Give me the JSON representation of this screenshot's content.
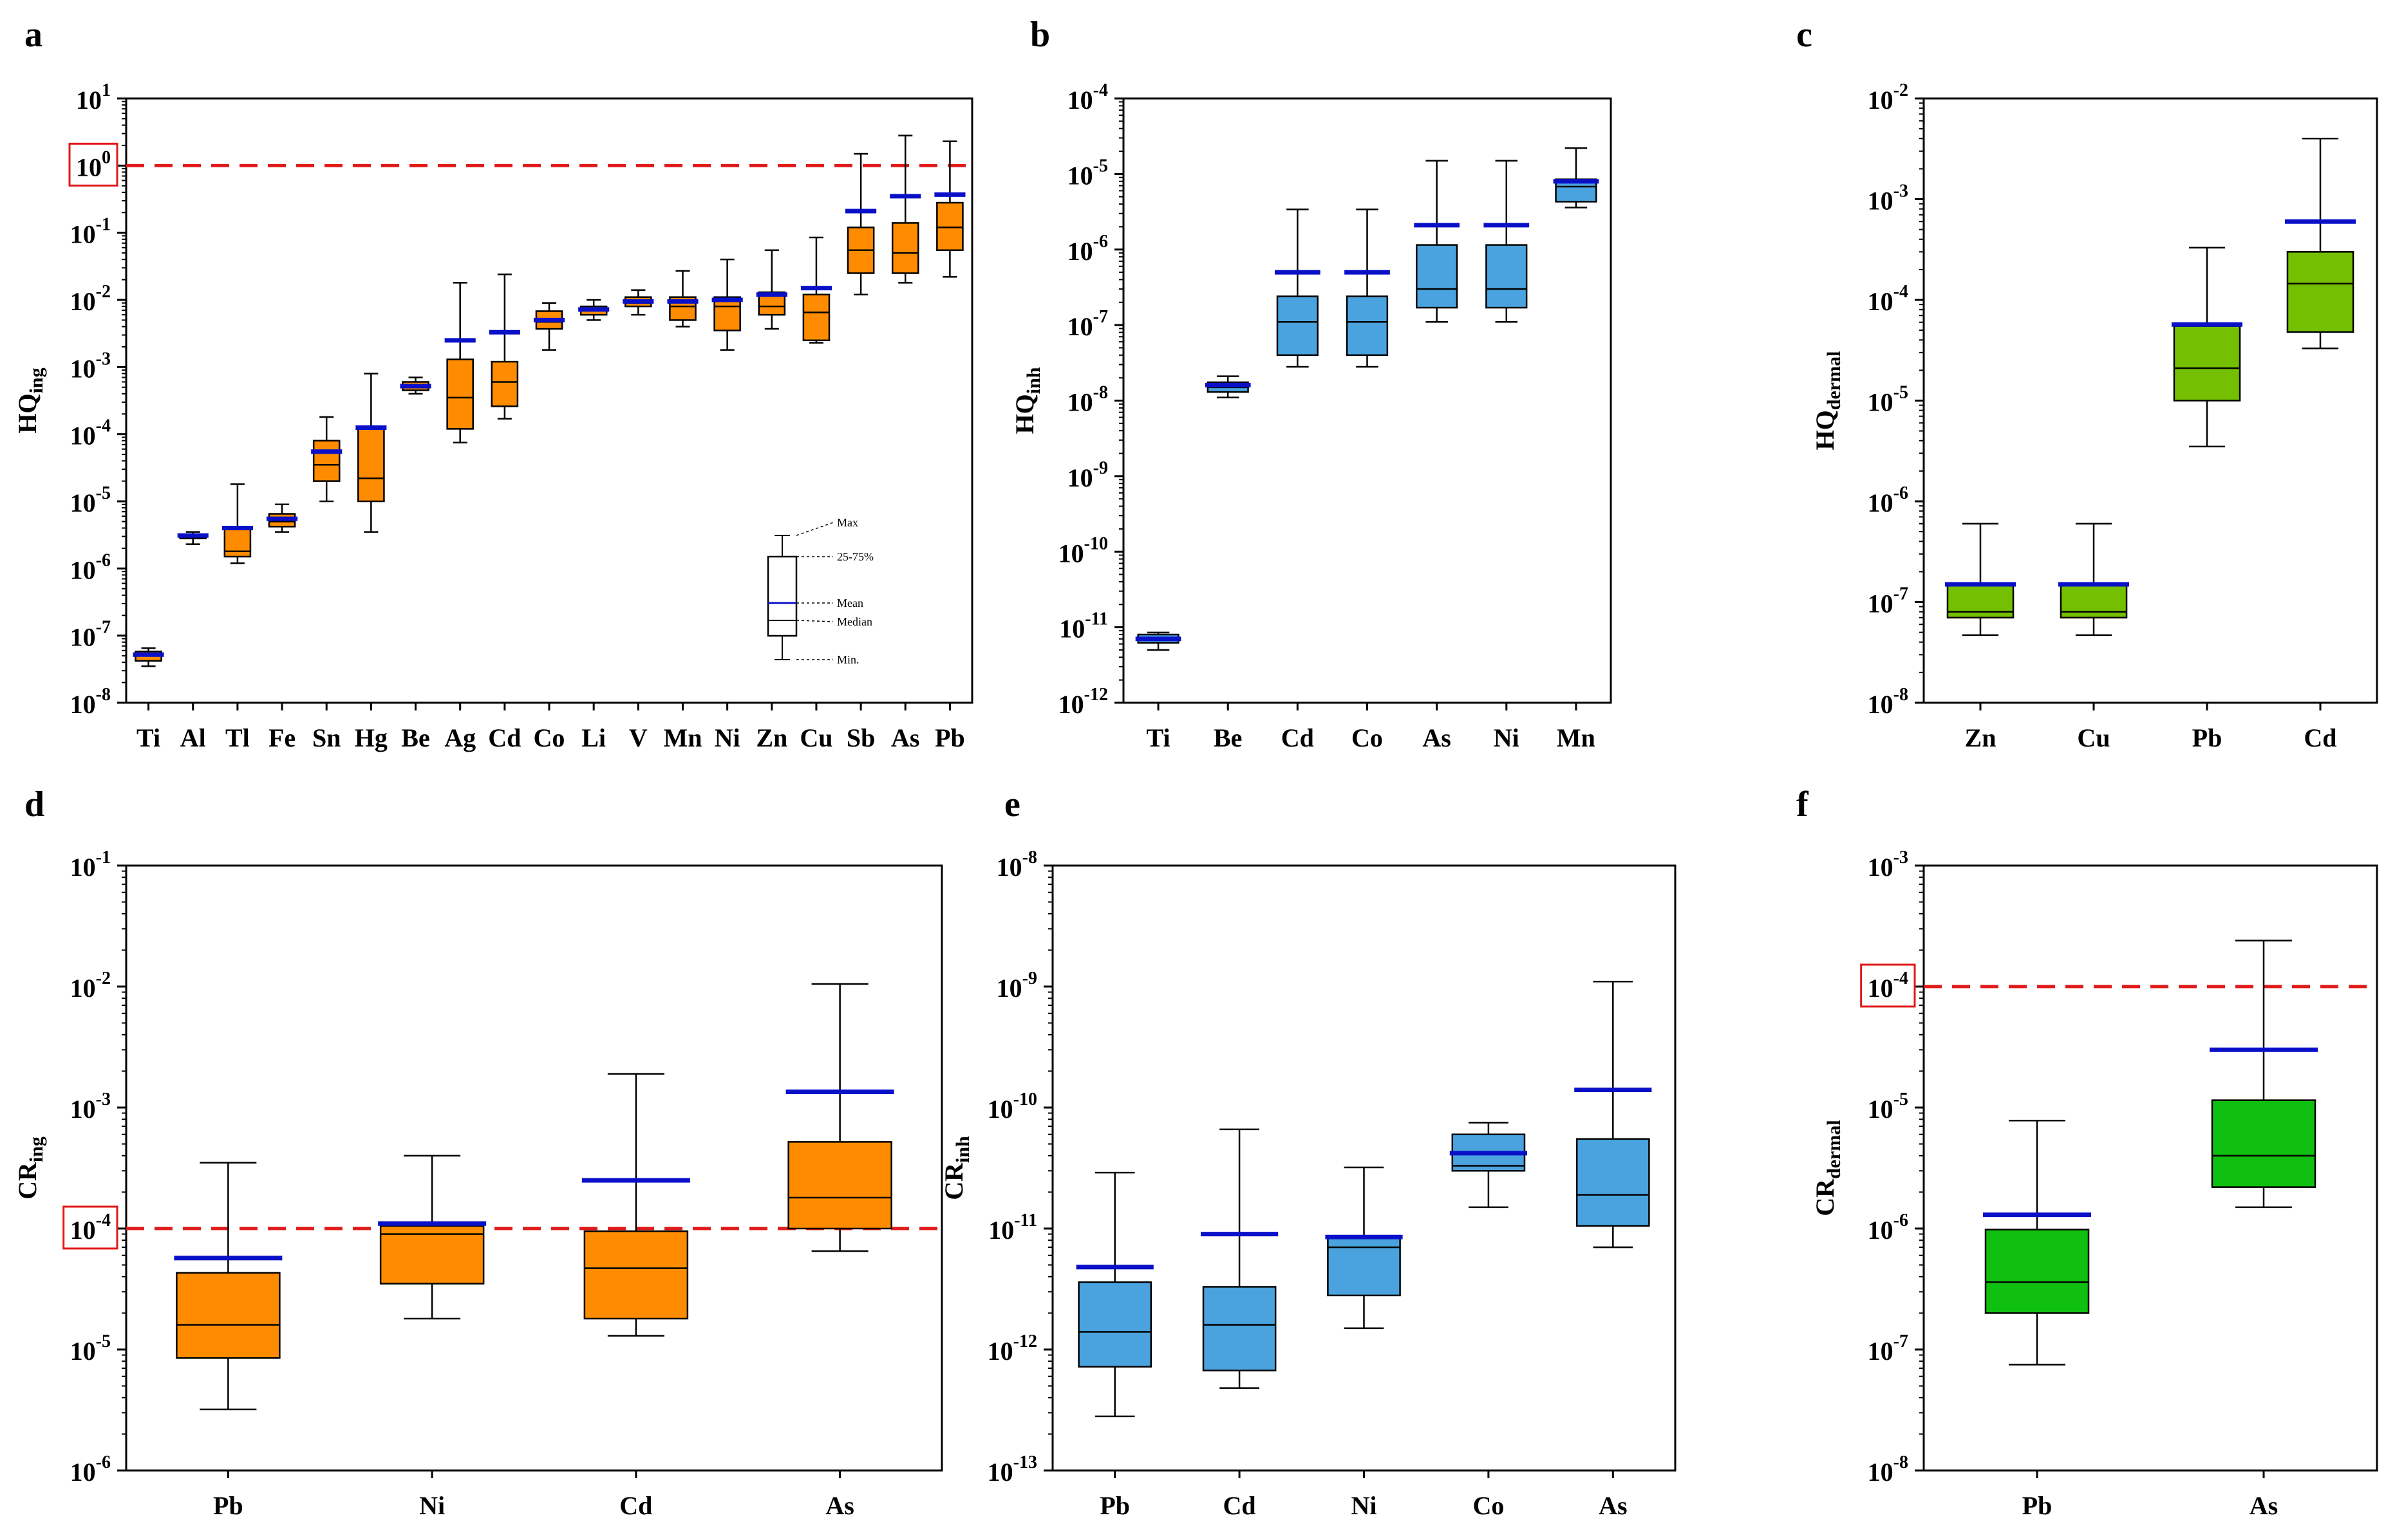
{
  "colors": {
    "orange": "#ff8c00",
    "blue": "#4aa3df",
    "green_light": "#74c000",
    "green": "#10c010",
    "mean_line": "#0a10c8",
    "threshold": "#e11919",
    "box_highlight": "#e11919"
  },
  "legend": {
    "max": "Max",
    "pct": "25-75%",
    "mean": "Mean",
    "median": "Median",
    "min": "Min."
  },
  "chart_data": [
    {
      "panel": "a",
      "type": "box",
      "ylabel_main": "HQ",
      "ylabel_sub": "ing",
      "yscale": "log",
      "ylim_exp": [
        -8,
        1
      ],
      "y_ticks": [
        {
          "exp": 1,
          "label": "10 1"
        },
        {
          "exp": 0,
          "label": "10 0"
        },
        {
          "exp": -1,
          "label": "10-1"
        },
        {
          "exp": -2,
          "label": "10-2"
        },
        {
          "exp": -3,
          "label": "10-3"
        },
        {
          "exp": -4,
          "label": "10-4"
        },
        {
          "exp": -5,
          "label": "10-5"
        },
        {
          "exp": -6,
          "label": "10-6"
        },
        {
          "exp": -7,
          "label": "10-7"
        },
        {
          "exp": -8,
          "label": "10-8"
        }
      ],
      "threshold_exp": 0,
      "highlight_tick": 0,
      "box_color": "orange",
      "categories": [
        "Ti",
        "Al",
        "Tl",
        "Fe",
        "Sn",
        "Hg",
        "Be",
        "Ag",
        "Cd",
        "Co",
        "Li",
        "V",
        "Mn",
        "Ni",
        "Zn",
        "Cu",
        "Sb",
        "As",
        "Pb"
      ],
      "series": [
        {
          "min": 3.5e-08,
          "q1": 4.2e-08,
          "median": 5e-08,
          "q3": 5.8e-08,
          "max": 6.5e-08,
          "mean": 5.2e-08
        },
        {
          "min": 2.3e-06,
          "q1": 2.8e-06,
          "median": 3e-06,
          "q3": 3.2e-06,
          "max": 3.5e-06,
          "mean": 3.1e-06
        },
        {
          "min": 1.2e-06,
          "q1": 1.5e-06,
          "median": 1.8e-06,
          "q3": 4e-06,
          "max": 1.8e-05,
          "mean": 4e-06
        },
        {
          "min": 3.5e-06,
          "q1": 4.2e-06,
          "median": 5e-06,
          "q3": 6.5e-06,
          "max": 9e-06,
          "mean": 5.5e-06
        },
        {
          "min": 1e-05,
          "q1": 2e-05,
          "median": 3.5e-05,
          "q3": 8e-05,
          "max": 0.00018,
          "mean": 5.5e-05
        },
        {
          "min": 3.5e-06,
          "q1": 1e-05,
          "median": 2.2e-05,
          "q3": 0.00012,
          "max": 0.0008,
          "mean": 0.000125
        },
        {
          "min": 0.0004,
          "q1": 0.00045,
          "median": 0.0005,
          "q3": 0.0006,
          "max": 0.0007,
          "mean": 0.00052
        },
        {
          "min": 7.5e-05,
          "q1": 0.00012,
          "median": 0.00035,
          "q3": 0.0013,
          "max": 0.018,
          "mean": 0.0025
        },
        {
          "min": 0.00017,
          "q1": 0.00026,
          "median": 0.0006,
          "q3": 0.0012,
          "max": 0.024,
          "mean": 0.0033
        },
        {
          "min": 0.0018,
          "q1": 0.0037,
          "median": 0.0047,
          "q3": 0.0068,
          "max": 0.009,
          "mean": 0.005
        },
        {
          "min": 0.005,
          "q1": 0.006,
          "median": 0.007,
          "q3": 0.008,
          "max": 0.01,
          "mean": 0.0072
        },
        {
          "min": 0.006,
          "q1": 0.008,
          "median": 0.009,
          "q3": 0.011,
          "max": 0.014,
          "mean": 0.0095
        },
        {
          "min": 0.004,
          "q1": 0.005,
          "median": 0.008,
          "q3": 0.011,
          "max": 0.027,
          "mean": 0.0095
        },
        {
          "min": 0.0018,
          "q1": 0.0035,
          "median": 0.008,
          "q3": 0.011,
          "max": 0.04,
          "mean": 0.01
        },
        {
          "min": 0.0037,
          "q1": 0.006,
          "median": 0.008,
          "q3": 0.013,
          "max": 0.055,
          "mean": 0.012
        },
        {
          "min": 0.0023,
          "q1": 0.0025,
          "median": 0.0065,
          "q3": 0.012,
          "max": 0.085,
          "mean": 0.015
        },
        {
          "min": 0.012,
          "q1": 0.025,
          "median": 0.055,
          "q3": 0.12,
          "max": 1.5,
          "mean": 0.21
        },
        {
          "min": 0.018,
          "q1": 0.025,
          "median": 0.05,
          "q3": 0.14,
          "max": 2.8,
          "mean": 0.35
        },
        {
          "min": 0.022,
          "q1": 0.055,
          "median": 0.12,
          "q3": 0.28,
          "max": 2.3,
          "mean": 0.37
        }
      ]
    },
    {
      "panel": "b",
      "type": "box",
      "ylabel_main": "HQ",
      "ylabel_sub": "inh",
      "yscale": "log",
      "ylim_exp": [
        -12,
        -4
      ],
      "y_ticks": [
        {
          "exp": -4,
          "label": "10-4"
        },
        {
          "exp": -5,
          "label": "10-5"
        },
        {
          "exp": -6,
          "label": "10-6"
        },
        {
          "exp": -7,
          "label": "10-7"
        },
        {
          "exp": -8,
          "label": "10-8"
        },
        {
          "exp": -9,
          "label": "10-9"
        },
        {
          "exp": -10,
          "label": "10-10"
        },
        {
          "exp": -11,
          "label": "10-11"
        },
        {
          "exp": -12,
          "label": "10-12"
        }
      ],
      "box_color": "blue",
      "categories": [
        "Ti",
        "Be",
        "Cd",
        "Co",
        "As",
        "Ni",
        "Mn"
      ],
      "series": [
        {
          "min": 5e-12,
          "q1": 6.2e-12,
          "median": 7e-12,
          "q3": 8e-12,
          "max": 8.5e-12,
          "mean": 7e-12
        },
        {
          "min": 1.1e-08,
          "q1": 1.3e-08,
          "median": 1.5e-08,
          "q3": 1.75e-08,
          "max": 2.1e-08,
          "mean": 1.6e-08
        },
        {
          "min": 2.8e-08,
          "q1": 4e-08,
          "median": 1.1e-07,
          "q3": 2.4e-07,
          "max": 3.4e-06,
          "mean": 5e-07
        },
        {
          "min": 2.8e-08,
          "q1": 4e-08,
          "median": 1.1e-07,
          "q3": 2.4e-07,
          "max": 3.4e-06,
          "mean": 5e-07
        },
        {
          "min": 1.1e-07,
          "q1": 1.7e-07,
          "median": 3e-07,
          "q3": 1.15e-06,
          "max": 1.5e-05,
          "mean": 2.1e-06
        },
        {
          "min": 1.1e-07,
          "q1": 1.7e-07,
          "median": 3e-07,
          "q3": 1.15e-06,
          "max": 1.5e-05,
          "mean": 2.1e-06
        },
        {
          "min": 3.6e-06,
          "q1": 4.3e-06,
          "median": 6.8e-06,
          "q3": 8.5e-06,
          "max": 2.2e-05,
          "mean": 8e-06
        }
      ]
    },
    {
      "panel": "c",
      "type": "box",
      "ylabel_main": "HQ",
      "ylabel_sub": "dermal",
      "yscale": "log",
      "ylim_exp": [
        -8,
        -2
      ],
      "y_ticks": [
        {
          "exp": -2,
          "label": "10-2"
        },
        {
          "exp": -3,
          "label": "10-3"
        },
        {
          "exp": -4,
          "label": "10-4"
        },
        {
          "exp": -5,
          "label": "10-5"
        },
        {
          "exp": -6,
          "label": "10-6"
        },
        {
          "exp": -7,
          "label": "10-7"
        },
        {
          "exp": -8,
          "label": "10-8"
        }
      ],
      "box_color": "green_light",
      "categories": [
        "Zn",
        "Cu",
        "Pb",
        "Cd"
      ],
      "series": [
        {
          "min": 4.7e-08,
          "q1": 7e-08,
          "median": 8e-08,
          "q3": 1.5e-07,
          "max": 6e-07,
          "mean": 1.5e-07
        },
        {
          "min": 4.7e-08,
          "q1": 7e-08,
          "median": 8e-08,
          "q3": 1.5e-07,
          "max": 6e-07,
          "mean": 1.5e-07
        },
        {
          "min": 3.5e-06,
          "q1": 1e-05,
          "median": 2.1e-05,
          "q3": 5.5e-05,
          "max": 0.00033,
          "mean": 5.7e-05
        },
        {
          "min": 3.3e-05,
          "q1": 4.8e-05,
          "median": 0.000145,
          "q3": 0.0003,
          "max": 0.004,
          "mean": 0.0006
        }
      ]
    },
    {
      "panel": "d",
      "type": "box",
      "ylabel_main": "CR",
      "ylabel_sub": "ing",
      "yscale": "log",
      "ylim_exp": [
        -6,
        -1
      ],
      "y_ticks": [
        {
          "exp": -1,
          "label": "10-1"
        },
        {
          "exp": -2,
          "label": "10-2"
        },
        {
          "exp": -3,
          "label": "10-3"
        },
        {
          "exp": -4,
          "label": "10-4"
        },
        {
          "exp": -5,
          "label": "10-5"
        },
        {
          "exp": -6,
          "label": "10-6"
        }
      ],
      "threshold_exp": -4,
      "highlight_tick": -4,
      "box_color": "orange",
      "categories": [
        "Pb",
        "Ni",
        "Cd",
        "As"
      ],
      "series": [
        {
          "min": 3.2e-06,
          "q1": 8.5e-06,
          "median": 1.6e-05,
          "q3": 4.3e-05,
          "max": 0.00035,
          "mean": 5.7e-05
        },
        {
          "min": 1.8e-05,
          "q1": 3.5e-05,
          "median": 9e-05,
          "q3": 0.000105,
          "max": 0.0004,
          "mean": 0.00011
        },
        {
          "min": 1.3e-05,
          "q1": 1.8e-05,
          "median": 4.7e-05,
          "q3": 9.5e-05,
          "max": 0.0019,
          "mean": 0.00025
        },
        {
          "min": 6.5e-05,
          "q1": 0.0001,
          "median": 0.00018,
          "q3": 0.00052,
          "max": 0.0105,
          "mean": 0.00135
        }
      ]
    },
    {
      "panel": "e",
      "type": "box",
      "ylabel_main": "CR",
      "ylabel_sub": "inh",
      "yscale": "log",
      "ylim_exp": [
        -13,
        -8
      ],
      "y_ticks": [
        {
          "exp": -8,
          "label": "10-8"
        },
        {
          "exp": -9,
          "label": "10-9"
        },
        {
          "exp": -10,
          "label": "10-10"
        },
        {
          "exp": -11,
          "label": "10-11"
        },
        {
          "exp": -12,
          "label": "10-12"
        },
        {
          "exp": -13,
          "label": "10-13"
        }
      ],
      "box_color": "blue",
      "categories": [
        "Pb",
        "Cd",
        "Ni",
        "Co",
        "As"
      ],
      "series": [
        {
          "min": 2.8e-13,
          "q1": 7.2e-13,
          "median": 1.4e-12,
          "q3": 3.6e-12,
          "max": 2.9e-11,
          "mean": 4.8e-12
        },
        {
          "min": 4.8e-13,
          "q1": 6.7e-13,
          "median": 1.6e-12,
          "q3": 3.3e-12,
          "max": 6.6e-11,
          "mean": 9e-12
        },
        {
          "min": 1.5e-12,
          "q1": 2.8e-12,
          "median": 7e-12,
          "q3": 8.5e-12,
          "max": 3.2e-11,
          "mean": 8.5e-12
        },
        {
          "min": 1.5e-11,
          "q1": 3e-11,
          "median": 3.3e-11,
          "q3": 6e-11,
          "max": 7.5e-11,
          "mean": 4.2e-11
        },
        {
          "min": 7e-12,
          "q1": 1.05e-11,
          "median": 1.9e-11,
          "q3": 5.5e-11,
          "max": 1.1e-09,
          "mean": 1.4e-10
        }
      ]
    },
    {
      "panel": "f",
      "type": "box",
      "ylabel_main": "CR",
      "ylabel_sub": "dermal",
      "yscale": "log",
      "ylim_exp": [
        -8,
        -3
      ],
      "y_ticks": [
        {
          "exp": -3,
          "label": "10-3"
        },
        {
          "exp": -4,
          "label": "10-4"
        },
        {
          "exp": -5,
          "label": "10-5"
        },
        {
          "exp": -6,
          "label": "10-6"
        },
        {
          "exp": -7,
          "label": "10-7"
        },
        {
          "exp": -8,
          "label": "10-8"
        }
      ],
      "threshold_exp": -4,
      "highlight_tick": -4,
      "box_color": "green",
      "categories": [
        "Pb",
        "As"
      ],
      "series": [
        {
          "min": 7.5e-08,
          "q1": 2e-07,
          "median": 3.6e-07,
          "q3": 9.8e-07,
          "max": 7.8e-06,
          "mean": 1.3e-06
        },
        {
          "min": 1.5e-06,
          "q1": 2.2e-06,
          "median": 4e-06,
          "q3": 1.15e-05,
          "max": 0.00024,
          "mean": 3e-05
        }
      ]
    }
  ]
}
